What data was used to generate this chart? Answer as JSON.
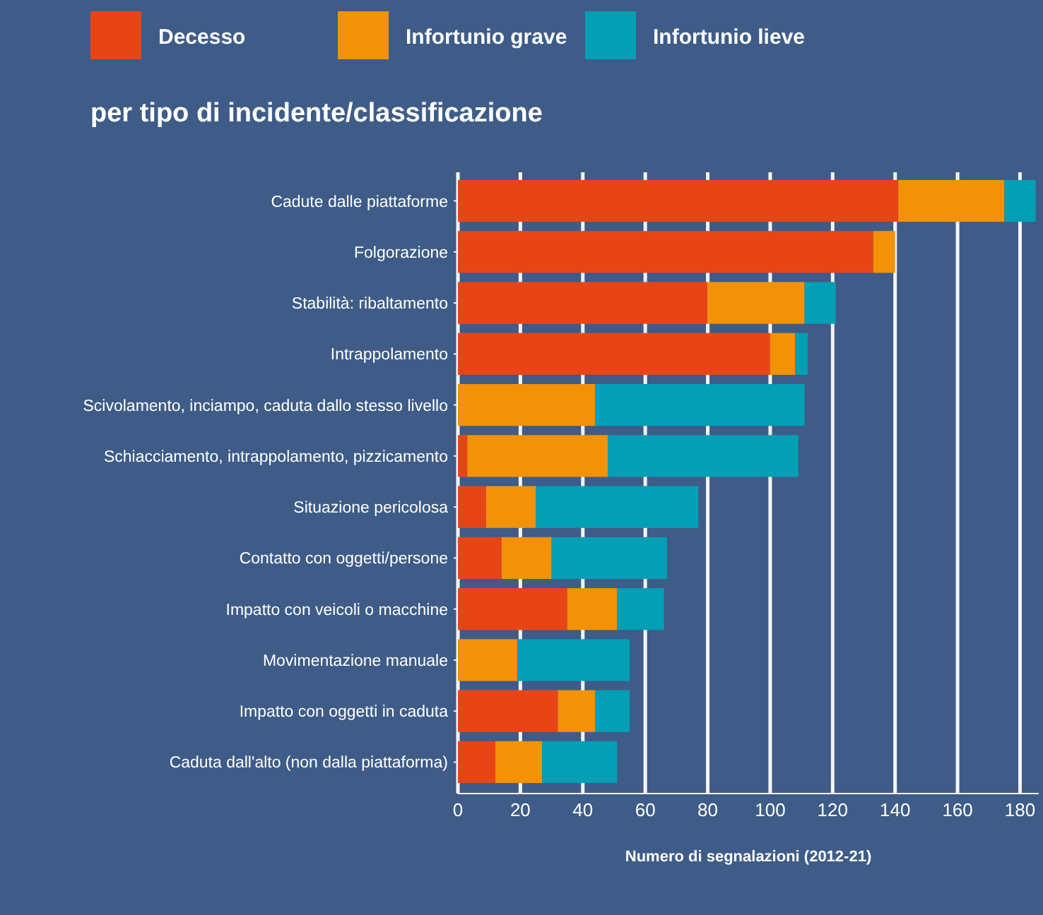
{
  "chart_data": {
    "type": "bar",
    "orientation": "horizontal",
    "stacked": true,
    "title": "per tipo di incidente/classificazione",
    "xlabel": "Numero di segnalazioni (2012-21)",
    "categories": [
      "Cadute dalle piattaforme",
      "Folgorazione",
      "Stabilità: ribaltamento",
      "Intrappolamento",
      "Scivolamento, inciampo, caduta dallo stesso livello",
      "Schiacciamento, intrappolamento, pizzicamento",
      "Situazione pericolosa",
      "Contatto con oggetti/persone",
      "Impatto con veicoli o macchine",
      "Movimentazione manuale",
      "Impatto con oggetti in caduta",
      "Caduta dall'alto (non dalla piattaforma)"
    ],
    "series": [
      {
        "name": "Decesso",
        "color": "#e84517",
        "values": [
          141,
          133,
          80,
          100,
          0,
          3,
          9,
          14,
          35,
          0,
          32,
          12
        ]
      },
      {
        "name": "Infortunio grave",
        "color": "#f39207",
        "values": [
          34,
          7,
          31,
          8,
          44,
          45,
          16,
          16,
          16,
          19,
          12,
          15
        ]
      },
      {
        "name": "Infortunio lieve",
        "color": "#029fb5",
        "values": [
          10,
          0,
          10,
          4,
          67,
          61,
          52,
          37,
          15,
          36,
          11,
          24
        ]
      }
    ],
    "xlim": [
      0,
      186
    ],
    "xticks": [
      0,
      20,
      40,
      60,
      80,
      100,
      120,
      140,
      160,
      180
    ],
    "grid": "x",
    "legend": "top left"
  }
}
